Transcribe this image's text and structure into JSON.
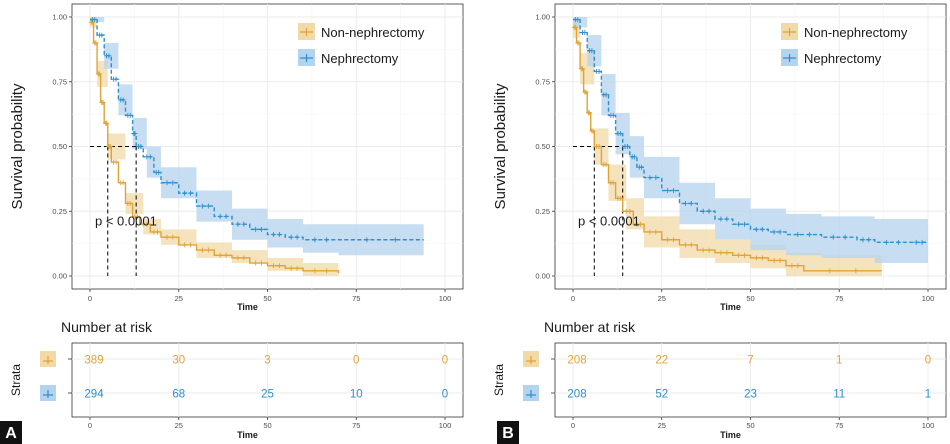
{
  "colors": {
    "non_nephrectomy": "#E0A436",
    "non_nephrectomy_band": "#F1D9A8",
    "nephrectomy": "#2D8FCC",
    "nephrectomy_band": "#B4D3EE",
    "grid": "#EBEBEB",
    "panel_letter_bg": "#111111"
  },
  "chart_data": [
    {
      "type": "line",
      "subtype": "kaplan-meier",
      "panel_label": "A",
      "xlabel": "Time",
      "ylabel": "Survival probability",
      "xlim": [
        0,
        100
      ],
      "ylim": [
        0,
        1
      ],
      "x_ticks": [
        "0",
        "25",
        "50",
        "75",
        "100"
      ],
      "y_ticks": [
        "0.00",
        "0.25",
        "0.50",
        "0.75",
        "1.00"
      ],
      "grid": true,
      "legend": {
        "placement": "top-right",
        "entries": [
          "Non-nephrectomy",
          "Nephrectomy"
        ]
      },
      "pvalue_text": "p < 0.0001",
      "median_survival": {
        "Non-nephrectomy": 5,
        "Nephrectomy": 13
      },
      "series": [
        {
          "name": "Non-nephrectomy",
          "line": "solid",
          "points": [
            [
              0,
              0.98
            ],
            [
              1,
              0.9
            ],
            [
              2,
              0.78
            ],
            [
              3,
              0.67
            ],
            [
              4,
              0.59
            ],
            [
              5,
              0.5
            ],
            [
              6,
              0.44
            ],
            [
              8,
              0.36
            ],
            [
              10,
              0.28
            ],
            [
              12,
              0.23
            ],
            [
              14,
              0.2
            ],
            [
              17,
              0.17
            ],
            [
              20,
              0.15
            ],
            [
              25,
              0.12
            ],
            [
              30,
              0.1
            ],
            [
              35,
              0.08
            ],
            [
              40,
              0.07
            ],
            [
              45,
              0.05
            ],
            [
              50,
              0.04
            ],
            [
              55,
              0.03
            ],
            [
              60,
              0.02
            ],
            [
              70,
              0.01
            ]
          ],
          "ci": [
            [
              0,
              1.0,
              0.96
            ],
            [
              2,
              0.83,
              0.73
            ],
            [
              5,
              0.55,
              0.45
            ],
            [
              10,
              0.32,
              0.24
            ],
            [
              15,
              0.22,
              0.16
            ],
            [
              20,
              0.18,
              0.12
            ],
            [
              30,
              0.13,
              0.07
            ],
            [
              40,
              0.1,
              0.05
            ],
            [
              50,
              0.07,
              0.02
            ],
            [
              60,
              0.05,
              0.0
            ],
            [
              70,
              0.04,
              0.0
            ]
          ]
        },
        {
          "name": "Nephrectomy",
          "line": "dashed",
          "points": [
            [
              0,
              0.99
            ],
            [
              2,
              0.93
            ],
            [
              4,
              0.85
            ],
            [
              6,
              0.76
            ],
            [
              8,
              0.68
            ],
            [
              10,
              0.62
            ],
            [
              12,
              0.55
            ],
            [
              13,
              0.5
            ],
            [
              15,
              0.46
            ],
            [
              18,
              0.4
            ],
            [
              20,
              0.36
            ],
            [
              25,
              0.32
            ],
            [
              30,
              0.27
            ],
            [
              35,
              0.23
            ],
            [
              40,
              0.2
            ],
            [
              45,
              0.18
            ],
            [
              50,
              0.16
            ],
            [
              55,
              0.15
            ],
            [
              60,
              0.14
            ],
            [
              70,
              0.14
            ],
            [
              94,
              0.14
            ]
          ],
          "ci": [
            [
              0,
              1.0,
              0.98
            ],
            [
              4,
              0.9,
              0.8
            ],
            [
              8,
              0.74,
              0.62
            ],
            [
              12,
              0.61,
              0.49
            ],
            [
              16,
              0.5,
              0.38
            ],
            [
              20,
              0.42,
              0.3
            ],
            [
              30,
              0.33,
              0.21
            ],
            [
              40,
              0.26,
              0.14
            ],
            [
              50,
              0.22,
              0.11
            ],
            [
              60,
              0.2,
              0.09
            ],
            [
              70,
              0.2,
              0.08
            ],
            [
              94,
              0.2,
              0.08
            ]
          ]
        }
      ],
      "risk_table": {
        "title": "Number at risk",
        "ylabel": "Strata",
        "xlabel": "Time",
        "times": [
          "0",
          "25",
          "50",
          "75",
          "100"
        ],
        "rows": [
          {
            "name": "Non-nephrectomy",
            "counts": [
              "389",
              "30",
              "3",
              "0",
              "0"
            ]
          },
          {
            "name": "Nephrectomy",
            "counts": [
              "294",
              "68",
              "25",
              "10",
              "0"
            ]
          }
        ]
      }
    },
    {
      "type": "line",
      "subtype": "kaplan-meier",
      "panel_label": "B",
      "xlabel": "Time",
      "ylabel": "Survival probability",
      "xlim": [
        0,
        100
      ],
      "ylim": [
        0,
        1
      ],
      "x_ticks": [
        "0",
        "25",
        "50",
        "75",
        "100"
      ],
      "y_ticks": [
        "0.00",
        "0.25",
        "0.50",
        "0.75",
        "1.00"
      ],
      "grid": true,
      "legend": {
        "placement": "top-right",
        "entries": [
          "Non-nephrectomy",
          "Nephrectomy"
        ]
      },
      "pvalue_text": "p < 0.0001",
      "median_survival": {
        "Non-nephrectomy": 6,
        "Nephrectomy": 14
      },
      "series": [
        {
          "name": "Non-nephrectomy",
          "line": "solid",
          "points": [
            [
              0,
              0.96
            ],
            [
              1,
              0.9
            ],
            [
              2,
              0.8
            ],
            [
              3,
              0.71
            ],
            [
              4,
              0.63
            ],
            [
              5,
              0.56
            ],
            [
              6,
              0.5
            ],
            [
              8,
              0.43
            ],
            [
              10,
              0.36
            ],
            [
              12,
              0.3
            ],
            [
              14,
              0.25
            ],
            [
              17,
              0.2
            ],
            [
              20,
              0.17
            ],
            [
              25,
              0.14
            ],
            [
              30,
              0.12
            ],
            [
              35,
              0.1
            ],
            [
              40,
              0.09
            ],
            [
              45,
              0.08
            ],
            [
              50,
              0.07
            ],
            [
              55,
              0.06
            ],
            [
              60,
              0.04
            ],
            [
              65,
              0.02
            ],
            [
              87,
              0.02
            ]
          ],
          "ci": [
            [
              0,
              0.99,
              0.92
            ],
            [
              2,
              0.86,
              0.74
            ],
            [
              6,
              0.57,
              0.43
            ],
            [
              10,
              0.43,
              0.29
            ],
            [
              15,
              0.3,
              0.18
            ],
            [
              20,
              0.23,
              0.11
            ],
            [
              30,
              0.18,
              0.07
            ],
            [
              40,
              0.14,
              0.05
            ],
            [
              50,
              0.12,
              0.03
            ],
            [
              60,
              0.09,
              0.0
            ],
            [
              70,
              0.08,
              0.0
            ],
            [
              87,
              0.08,
              0.0
            ]
          ]
        },
        {
          "name": "Nephrectomy",
          "line": "dashed",
          "points": [
            [
              0,
              0.99
            ],
            [
              2,
              0.94
            ],
            [
              4,
              0.87
            ],
            [
              6,
              0.79
            ],
            [
              8,
              0.7
            ],
            [
              10,
              0.62
            ],
            [
              12,
              0.55
            ],
            [
              14,
              0.5
            ],
            [
              16,
              0.46
            ],
            [
              18,
              0.42
            ],
            [
              20,
              0.38
            ],
            [
              25,
              0.33
            ],
            [
              30,
              0.28
            ],
            [
              35,
              0.25
            ],
            [
              40,
              0.22
            ],
            [
              45,
              0.2
            ],
            [
              50,
              0.18
            ],
            [
              55,
              0.17
            ],
            [
              60,
              0.16
            ],
            [
              70,
              0.15
            ],
            [
              80,
              0.14
            ],
            [
              85,
              0.13
            ],
            [
              95,
              0.13
            ],
            [
              100,
              0.13
            ]
          ],
          "ci": [
            [
              0,
              1.0,
              0.96
            ],
            [
              4,
              0.93,
              0.81
            ],
            [
              8,
              0.78,
              0.62
            ],
            [
              12,
              0.63,
              0.47
            ],
            [
              16,
              0.54,
              0.38
            ],
            [
              20,
              0.46,
              0.3
            ],
            [
              30,
              0.36,
              0.2
            ],
            [
              40,
              0.3,
              0.14
            ],
            [
              50,
              0.26,
              0.1
            ],
            [
              60,
              0.24,
              0.08
            ],
            [
              70,
              0.23,
              0.07
            ],
            [
              85,
              0.22,
              0.05
            ],
            [
              100,
              0.22,
              0.05
            ]
          ]
        }
      ],
      "risk_table": {
        "title": "Number at risk",
        "ylabel": "Strata",
        "xlabel": "Time",
        "times": [
          "0",
          "25",
          "50",
          "75",
          "100"
        ],
        "rows": [
          {
            "name": "Non-nephrectomy",
            "counts": [
              "208",
              "22",
              "7",
              "1",
              "0"
            ]
          },
          {
            "name": "Nephrectomy",
            "counts": [
              "208",
              "52",
              "23",
              "11",
              "1"
            ]
          }
        ]
      }
    }
  ]
}
